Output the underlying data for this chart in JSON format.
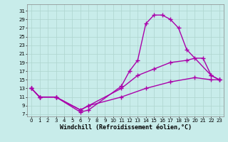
{
  "background_color": "#c8ecea",
  "grid_color": "#aed4ce",
  "line_color": "#aa00aa",
  "marker": "+",
  "markersize": 4,
  "linewidth": 1.0,
  "xlabel": "Windchill (Refroidissement éolien,°C)",
  "xlabel_fontsize": 6,
  "xlim": [
    -0.5,
    23.5
  ],
  "ylim": [
    6.5,
    32.5
  ],
  "xticks": [
    0,
    1,
    2,
    3,
    4,
    5,
    6,
    7,
    8,
    9,
    10,
    11,
    12,
    13,
    14,
    15,
    16,
    17,
    18,
    19,
    20,
    21,
    22,
    23
  ],
  "yticks": [
    7,
    9,
    11,
    13,
    15,
    17,
    19,
    21,
    23,
    25,
    27,
    29,
    31
  ],
  "tick_fontsize": 5,
  "series": [
    {
      "x": [
        0,
        1,
        3,
        6,
        7,
        11,
        12,
        13,
        14,
        15,
        16,
        17,
        18,
        19,
        22,
        23
      ],
      "y": [
        13,
        11,
        11,
        7.5,
        8,
        13.5,
        17,
        19.5,
        28,
        30,
        30,
        29,
        27,
        22,
        16,
        15
      ]
    },
    {
      "x": [
        0,
        1,
        3,
        6,
        7,
        11,
        13,
        15,
        17,
        19,
        20,
        21,
        22,
        23
      ],
      "y": [
        13,
        11,
        11,
        8,
        9,
        13,
        16,
        17.5,
        19,
        19.5,
        20,
        20,
        16,
        15
      ]
    },
    {
      "x": [
        0,
        1,
        3,
        6,
        7,
        11,
        14,
        17,
        20,
        22,
        23
      ],
      "y": [
        13,
        11,
        11,
        8,
        9,
        11,
        13,
        14.5,
        15.5,
        15,
        15
      ]
    }
  ]
}
